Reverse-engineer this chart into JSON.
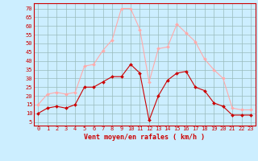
{
  "hours": [
    0,
    1,
    2,
    3,
    4,
    5,
    6,
    7,
    8,
    9,
    10,
    11,
    12,
    13,
    14,
    15,
    16,
    17,
    18,
    19,
    20,
    21,
    22,
    23
  ],
  "wind_avg": [
    10,
    13,
    14,
    13,
    15,
    25,
    25,
    28,
    31,
    31,
    38,
    33,
    6,
    20,
    29,
    33,
    34,
    25,
    23,
    16,
    14,
    9,
    9,
    9
  ],
  "wind_gust": [
    15,
    21,
    22,
    21,
    22,
    37,
    38,
    46,
    52,
    70,
    70,
    58,
    28,
    47,
    48,
    61,
    56,
    51,
    41,
    35,
    30,
    13,
    12,
    12
  ],
  "avg_color": "#cc0000",
  "gust_color": "#ffaaaa",
  "background_color": "#cceeff",
  "grid_color": "#99bbbb",
  "ylabel_ticks": [
    5,
    10,
    15,
    20,
    25,
    30,
    35,
    40,
    45,
    50,
    55,
    60,
    65,
    70
  ],
  "ylim": [
    3,
    73
  ],
  "xlim": [
    -0.5,
    23.5
  ],
  "xlabel": "Vent moyen/en rafales ( km/h )",
  "xlabel_color": "#cc0000",
  "tick_fontsize": 5,
  "xlabel_fontsize": 6
}
